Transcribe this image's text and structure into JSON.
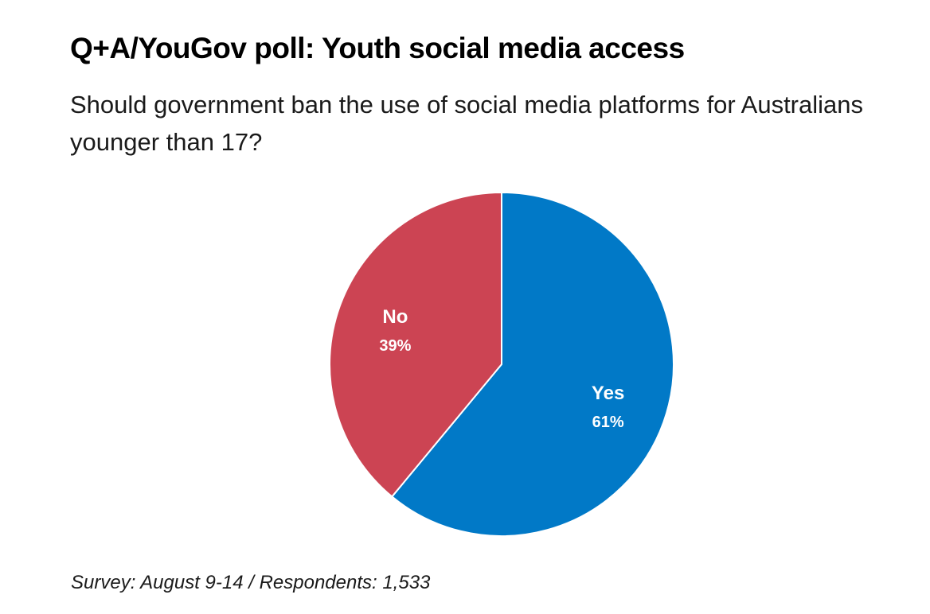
{
  "chart_data": {
    "type": "pie",
    "title": "Q+A/YouGov poll: Youth social media access",
    "subtitle": "Should government ban the use of social media platforms for Australians younger than 17?",
    "categories": [
      "Yes",
      "No"
    ],
    "values": [
      61,
      39
    ],
    "value_labels": [
      "61%",
      "39%"
    ],
    "colors": [
      "#0179C7",
      "#CC4453"
    ],
    "footnote": "Survey: August 9-14 / Respondents: 1,533"
  }
}
